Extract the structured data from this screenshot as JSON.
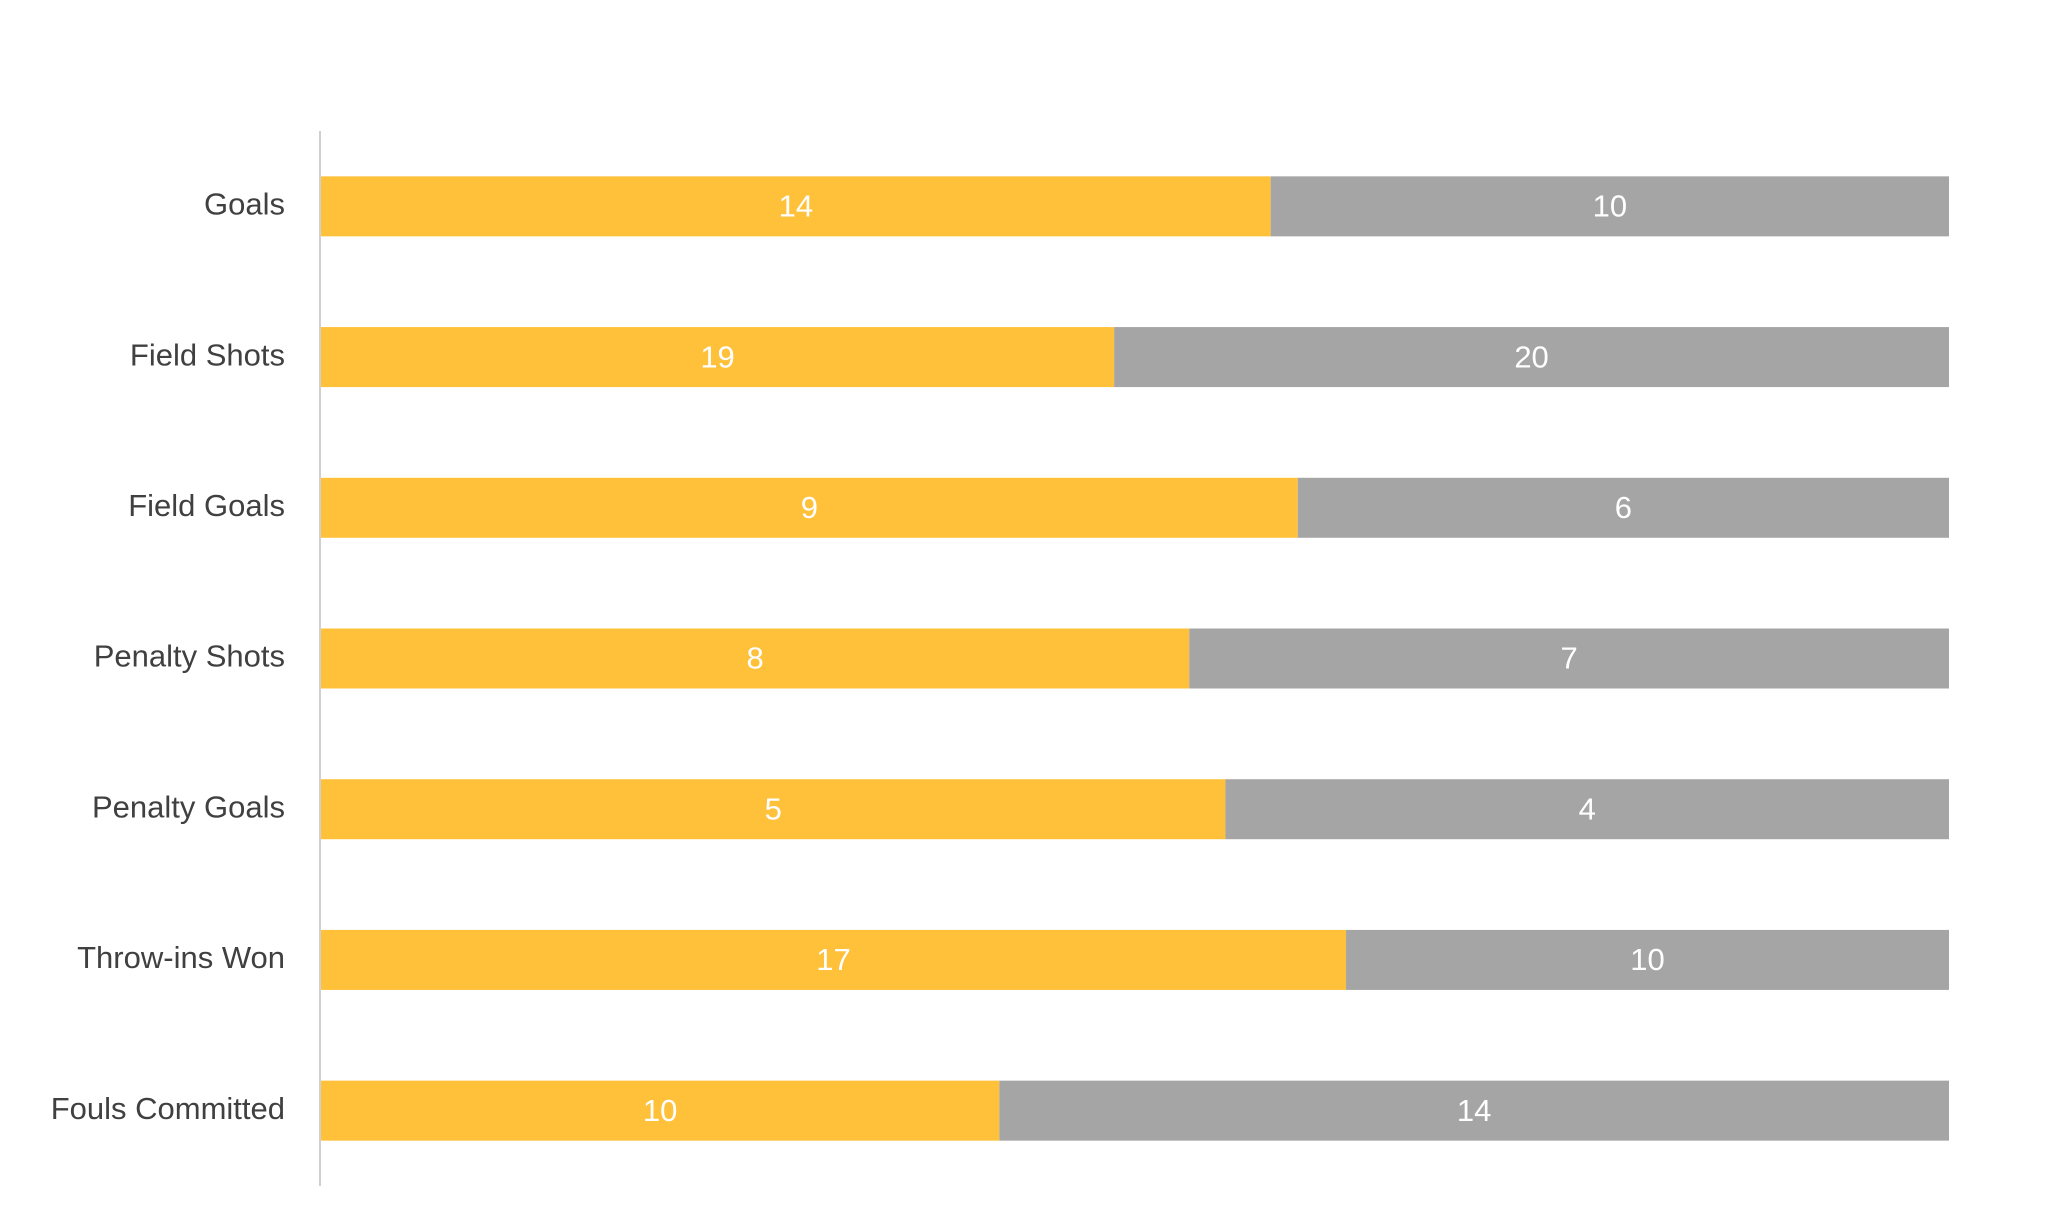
{
  "chart_data": {
    "type": "bar",
    "orientation": "horizontal",
    "stacked": "percent",
    "categories": [
      "Goals",
      "Field Shots",
      "Field Goals",
      "Penalty Shots",
      "Penalty Goals",
      "Throw-ins Won",
      "Fouls Committed"
    ],
    "series": [
      {
        "color": "#FFC03A",
        "values": [
          14,
          19,
          9,
          8,
          5,
          17,
          10
        ]
      },
      {
        "color": "#A5A5A5",
        "values": [
          10,
          20,
          6,
          7,
          4,
          10,
          14
        ]
      }
    ]
  }
}
